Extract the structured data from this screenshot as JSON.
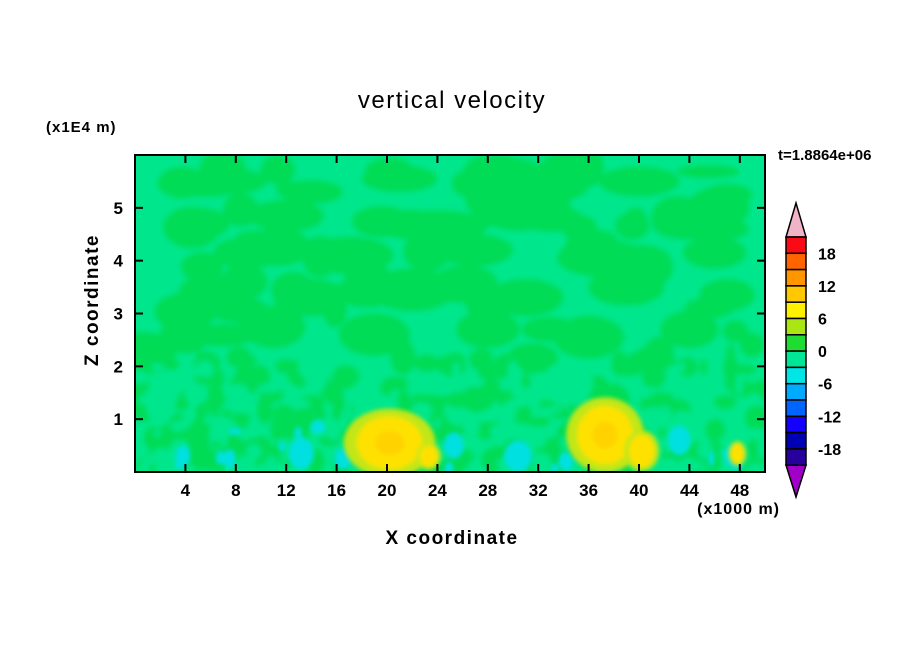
{
  "chart_data": {
    "type": "contour",
    "title": "vertical velocity",
    "xlabel": "X coordinate",
    "ylabel": "Z coordinate",
    "x_units": "(x1000 m)",
    "z_units": "(x1E4 m)",
    "time_label": "t=1.8864e+06",
    "x_range": [
      0,
      50
    ],
    "z_range": [
      0,
      6
    ],
    "x_ticks": [
      4,
      8,
      12,
      16,
      20,
      24,
      28,
      32,
      36,
      40,
      44,
      48
    ],
    "z_ticks": [
      1,
      2,
      3,
      4,
      5
    ],
    "contour_interval": 3,
    "colorbar": {
      "labels": [
        "18",
        "12",
        "6",
        "0",
        "-6",
        "-12",
        "-18"
      ],
      "levels": [
        21,
        18,
        15,
        12,
        9,
        6,
        3,
        0,
        -3,
        -6,
        -9,
        -12,
        -15,
        -18,
        -21
      ],
      "segment_colors_top_to_bottom": [
        "#fa0a14",
        "#ff6400",
        "#ff9600",
        "#ffc800",
        "#fff000",
        "#aae614",
        "#1edc32",
        "#00e696",
        "#00e6e6",
        "#00aaff",
        "#0064ff",
        "#1400ff",
        "#0000b4",
        "#28009b"
      ],
      "arrow_top_color": "#f0b4c8",
      "arrow_bottom_color": "#a000c8"
    },
    "field_colors": {
      "background": "#00e68c",
      "patch": "#00dc55",
      "cyan": "#00e0e0",
      "yellow": "#ffe100",
      "yellow_core": "#ffd200",
      "yellow_ring": "#c3e614"
    },
    "features": {
      "patches": [
        {
          "x": 7,
          "z": 5.5,
          "rx": 3.5,
          "rz": 0.25
        },
        {
          "x": 14,
          "z": 5.3,
          "rx": 2.5,
          "rz": 0.22
        },
        {
          "x": 21,
          "z": 5.55,
          "rx": 3.0,
          "rz": 0.25
        },
        {
          "x": 30,
          "z": 5.4,
          "rx": 2.3,
          "rz": 0.2
        },
        {
          "x": 40,
          "z": 5.5,
          "rx": 3.2,
          "rz": 0.28
        },
        {
          "x": 47,
          "z": 5.25,
          "rx": 2.0,
          "rz": 0.2
        },
        {
          "x": 5,
          "z": 4.7,
          "rx": 2.5,
          "rz": 0.3
        },
        {
          "x": 12,
          "z": 4.85,
          "rx": 3.0,
          "rz": 0.3
        },
        {
          "x": 24,
          "z": 4.65,
          "rx": 4.0,
          "rz": 0.3
        },
        {
          "x": 33,
          "z": 4.8,
          "rx": 2.5,
          "rz": 0.25
        },
        {
          "x": 44,
          "z": 4.7,
          "rx": 3.0,
          "rz": 0.3
        },
        {
          "x": 9,
          "z": 4.15,
          "rx": 2.8,
          "rz": 0.3
        },
        {
          "x": 17,
          "z": 4.1,
          "rx": 3.5,
          "rz": 0.35
        },
        {
          "x": 27,
          "z": 4.2,
          "rx": 3.0,
          "rz": 0.3
        },
        {
          "x": 37,
          "z": 4.05,
          "rx": 3.5,
          "rz": 0.35
        },
        {
          "x": 46,
          "z": 4.15,
          "rx": 2.5,
          "rz": 0.3
        },
        {
          "x": 6,
          "z": 3.4,
          "rx": 2.5,
          "rz": 0.35
        },
        {
          "x": 14,
          "z": 3.3,
          "rx": 3.0,
          "rz": 0.35
        },
        {
          "x": 22,
          "z": 3.45,
          "rx": 3.5,
          "rz": 0.4
        },
        {
          "x": 31,
          "z": 3.3,
          "rx": 3.0,
          "rz": 0.35
        },
        {
          "x": 39,
          "z": 3.5,
          "rx": 3.0,
          "rz": 0.35
        },
        {
          "x": 47,
          "z": 3.35,
          "rx": 2.2,
          "rz": 0.3
        },
        {
          "x": 4,
          "z": 2.6,
          "rx": 2.0,
          "rz": 0.35
        },
        {
          "x": 11,
          "z": 2.75,
          "rx": 2.5,
          "rz": 0.4
        },
        {
          "x": 19,
          "z": 2.6,
          "rx": 2.8,
          "rz": 0.4
        },
        {
          "x": 28,
          "z": 2.7,
          "rx": 2.5,
          "rz": 0.35
        },
        {
          "x": 36,
          "z": 2.55,
          "rx": 2.8,
          "rz": 0.4
        },
        {
          "x": 44,
          "z": 2.7,
          "rx": 2.3,
          "rz": 0.35
        }
      ],
      "cyan_spots": [
        {
          "x": 3.8,
          "z": 0.3,
          "rx": 0.6,
          "rz": 0.2
        },
        {
          "x": 7.5,
          "z": 0.25,
          "rx": 0.5,
          "rz": 0.18
        },
        {
          "x": 13.2,
          "z": 0.35,
          "rx": 1.0,
          "rz": 0.3
        },
        {
          "x": 16.5,
          "z": 0.25,
          "rx": 0.7,
          "rz": 0.2
        },
        {
          "x": 25.3,
          "z": 0.5,
          "rx": 0.8,
          "rz": 0.25
        },
        {
          "x": 30.4,
          "z": 0.3,
          "rx": 1.1,
          "rz": 0.3
        },
        {
          "x": 34.2,
          "z": 0.2,
          "rx": 0.6,
          "rz": 0.18
        },
        {
          "x": 43.2,
          "z": 0.6,
          "rx": 0.9,
          "rz": 0.28
        },
        {
          "x": 47.5,
          "z": 0.3,
          "rx": 0.8,
          "rz": 0.22
        }
      ],
      "yellow_spots": [
        {
          "x": 20.2,
          "z": 0.55,
          "rx": 2.6,
          "rz": 0.5
        },
        {
          "x": 37.3,
          "z": 0.7,
          "rx": 2.2,
          "rz": 0.55
        },
        {
          "x": 40.2,
          "z": 0.4,
          "rx": 1.0,
          "rz": 0.3
        },
        {
          "x": 23.3,
          "z": 0.3,
          "rx": 0.7,
          "rz": 0.2
        },
        {
          "x": 47.8,
          "z": 0.35,
          "rx": 0.5,
          "rz": 0.18
        }
      ]
    },
    "texture": {
      "seed": 7,
      "mid_count": 70,
      "speckle_count": 240,
      "bg_speckle_count": 130,
      "cyan_speckle_count": 14
    }
  }
}
